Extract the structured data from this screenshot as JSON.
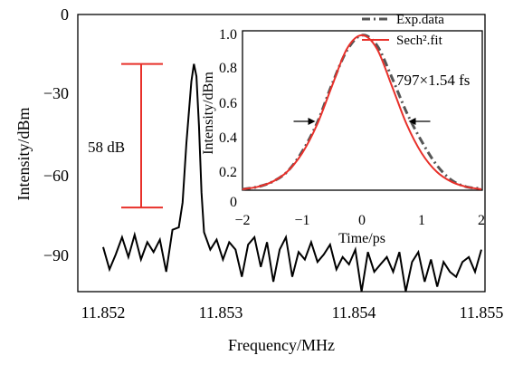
{
  "chart_data": [
    {
      "type": "line",
      "title": "",
      "xlabel": "Frequency/MHz",
      "ylabel": "Intensity/dBm",
      "xlim": [
        11.852,
        11.855
      ],
      "ylim": [
        -112,
        0
      ],
      "x_ticks": [
        "11.852",
        "11.853",
        "11.854",
        "11.855"
      ],
      "y_ticks": [
        "0",
        "−30",
        "−60",
        "−90"
      ],
      "grid": false,
      "series": [
        {
          "name": "",
          "color": "#000000",
          "x": [
            11.852,
            11.85205,
            11.8521,
            11.85215,
            11.8522,
            11.85225,
            11.8523,
            11.85235,
            11.8524,
            11.85245,
            11.8525,
            11.85255,
            11.8526,
            11.85263,
            11.85266,
            11.8527,
            11.85272,
            11.85274,
            11.85276,
            11.85278,
            11.8528,
            11.85285,
            11.8529,
            11.85295,
            11.853,
            11.85305,
            11.8531,
            11.85315,
            11.8532,
            11.85325,
            11.8533,
            11.85335,
            11.8534,
            11.85345,
            11.8535,
            11.85355,
            11.8536,
            11.85365,
            11.8537,
            11.85375,
            11.8538,
            11.85385,
            11.8539,
            11.85395,
            11.854,
            11.85405,
            11.8541,
            11.85415,
            11.8542,
            11.85425,
            11.8543,
            11.85435,
            11.8544,
            11.85445,
            11.8545,
            11.85455,
            11.8546,
            11.85465,
            11.8547,
            11.85475,
            11.8548,
            11.85485,
            11.8549,
            11.85495,
            11.855
          ],
          "y": [
            -94,
            -103,
            -97,
            -90,
            -98,
            -89,
            -99,
            -92,
            -96,
            -91,
            -104,
            -87,
            -86,
            -76,
            -52,
            -27,
            -20,
            -25,
            -45,
            -72,
            -88,
            -95,
            -91,
            -99,
            -92,
            -95,
            -106,
            -93,
            -90,
            -102,
            -92,
            -108,
            -95,
            -90,
            -106,
            -96,
            -99,
            -92,
            -100,
            -97,
            -93,
            -103,
            -98,
            -101,
            -95,
            -112,
            -96,
            -104,
            -101,
            -98,
            -104,
            -96,
            -112,
            -100,
            -96,
            -108,
            -99,
            -110,
            -100,
            -104,
            -106,
            -100,
            -98,
            -104,
            -95
          ]
        }
      ],
      "annotations": [
        {
          "label": "58 dB",
          "y_top": -20,
          "y_bottom": -78,
          "color": "#e8302a"
        }
      ]
    },
    {
      "type": "line",
      "title": "",
      "xlabel": "Time/ps",
      "ylabel": "Intensity/dBm",
      "xlim": [
        -2,
        2
      ],
      "ylim": [
        0,
        1.0
      ],
      "x_ticks": [
        "−2",
        "−1",
        "0",
        "1",
        "2"
      ],
      "y_ticks": [
        "0",
        "0.2",
        "0.4",
        "0.6",
        "0.8",
        "1.0"
      ],
      "grid": false,
      "legend_position": "top-right",
      "series": [
        {
          "name": "Exp.data",
          "color": "#555555",
          "style": "dash-dot",
          "x": [
            -2,
            -1.75,
            -1.5,
            -1.25,
            -1.0,
            -0.75,
            -0.5,
            -0.25,
            0,
            0.25,
            0.5,
            0.75,
            1.0,
            1.25,
            1.5,
            1.75,
            2
          ],
          "y": [
            0.06,
            0.09,
            0.12,
            0.18,
            0.3,
            0.47,
            0.7,
            0.9,
            0.99,
            0.93,
            0.74,
            0.53,
            0.36,
            0.22,
            0.13,
            0.09,
            0.08
          ]
        },
        {
          "name": "Sech².fit",
          "color": "#e8302a",
          "style": "solid",
          "x": [
            -2,
            -1.75,
            -1.5,
            -1.25,
            -1.0,
            -0.75,
            -0.5,
            -0.25,
            0,
            0.25,
            0.5,
            0.75,
            1.0,
            1.25,
            1.5,
            1.75,
            2
          ],
          "y": [
            0.07,
            0.09,
            0.12,
            0.18,
            0.29,
            0.46,
            0.69,
            0.91,
            0.99,
            0.91,
            0.69,
            0.46,
            0.29,
            0.18,
            0.12,
            0.09,
            0.07
          ]
        }
      ],
      "annotations": [
        {
          "label": "797×1.54 fs",
          "fwhm_left": -0.75,
          "fwhm_right": 0.75,
          "level": 0.5
        }
      ]
    }
  ]
}
